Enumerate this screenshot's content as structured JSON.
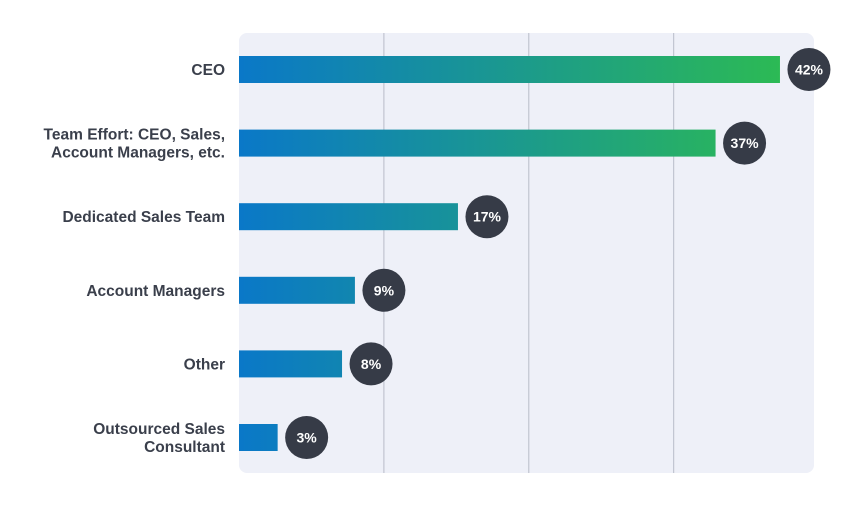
{
  "chart_data": {
    "type": "bar",
    "orientation": "horizontal",
    "categories": [
      [
        "CEO"
      ],
      [
        "Team Effort: CEO, Sales,",
        "Account Managers, etc."
      ],
      [
        "Dedicated Sales Team"
      ],
      [
        "Account Managers"
      ],
      [
        "Other"
      ],
      [
        "Outsourced Sales",
        "Consultant"
      ]
    ],
    "values": [
      42,
      37,
      17,
      9,
      8,
      3
    ],
    "value_labels": [
      "42%",
      "37%",
      "17%",
      "9%",
      "8%",
      "3%"
    ],
    "xlim": [
      0,
      45
    ],
    "gridlines_at": [
      11.25,
      22.5,
      33.75
    ],
    "grid": true,
    "legend": "none",
    "colors": {
      "gradient_start": "#0a78c8",
      "gradient_end": "#2cba54",
      "plot_background": "#eef0f8",
      "gridline": "#b8bcc8",
      "badge": "#363b47",
      "label_text": "#3a3f4b"
    }
  }
}
